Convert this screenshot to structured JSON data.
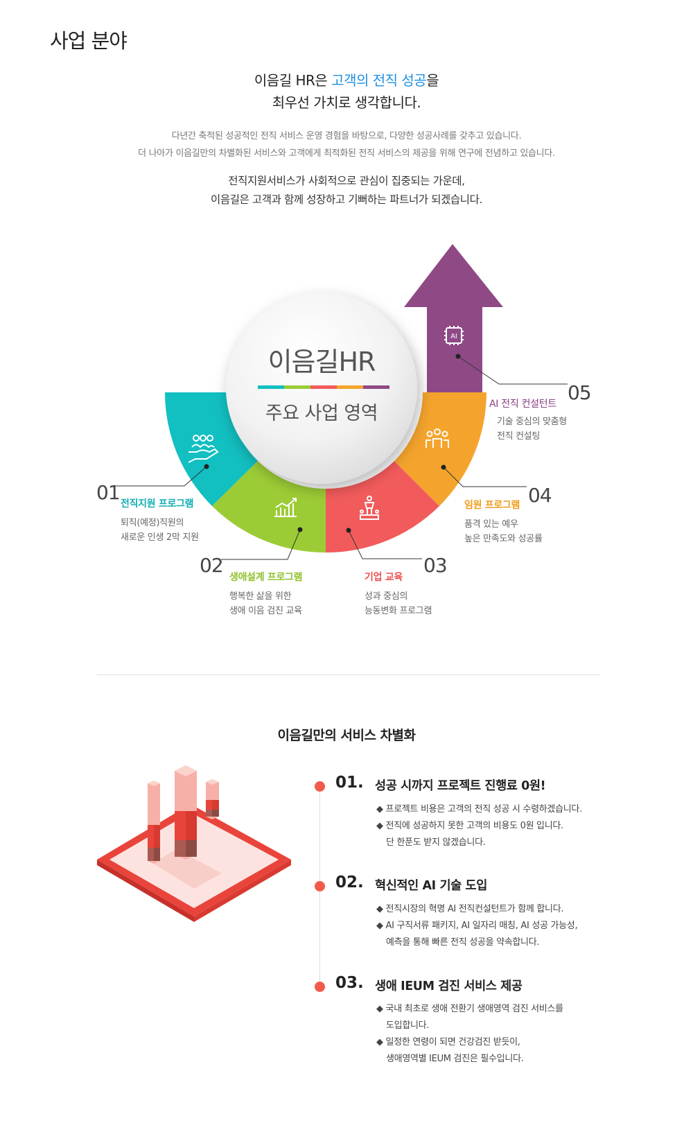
{
  "page_title": "사업 분야",
  "intro": {
    "headline_part1": "이음길 HR은 ",
    "headline_highlight": "고객의 전직 성공",
    "headline_part2": "을",
    "headline_line2": "최우선 가치로 생각합니다.",
    "desc_line1": "다년간 축적된 성공적인 전직 서비스 운영 경험을 바탕으로, 다양한 성공사례를 갖추고 있습니다.",
    "desc_line2": "더 나아가 이음길만의 차별화된 서비스와 고객에게 최적화된 전직 서비스의 제공을 위해 연구에 전념하고 있습니다.",
    "desc2_line1": "전직지원서비스가 사회적으로 관심이 집중되는 가운데,",
    "desc2_line2": "이음길은 고객과 함께 성장하고 기뻐하는 파트너가 되겠습니다."
  },
  "diagram": {
    "center_title": "이음길HR",
    "center_subtitle": "주요 사업 영역",
    "ai_chip_label": "AI",
    "colors": {
      "teal": "#12bfc1",
      "green": "#9ccc35",
      "red": "#f25b5b",
      "orange": "#f4a42c",
      "purple": "#8f4a86"
    },
    "programs": [
      {
        "num": "01",
        "title": "전직지원 프로그램",
        "desc1": "퇴직(예정)직원의",
        "desc2": "새로운 인생 2막 지원",
        "color": "#12aeb3",
        "icon": "hand-people-icon"
      },
      {
        "num": "02",
        "title": "생애설계 프로그램",
        "desc1": "행복한 삶을 위한",
        "desc2": "생애 이음 검진 교육",
        "color": "#8fc12c",
        "icon": "growth-chart-icon"
      },
      {
        "num": "03",
        "title": "기업 교육",
        "desc1": "성과 중심의",
        "desc2": "능동변화 프로그램",
        "color": "#ef4f4f",
        "icon": "podium-icon"
      },
      {
        "num": "04",
        "title": "임원 프로그램",
        "desc1": "품격 있는 예우",
        "desc2": "높은 만족도와 성공률",
        "color": "#f09b1c",
        "icon": "executives-icon"
      },
      {
        "num": "05",
        "title": "AI 전직 컨설턴트",
        "desc1": "기술 중심의 맞춤형",
        "desc2": "전직 컨설팅",
        "color": "#8a3f82",
        "icon": "ai-chip-icon"
      }
    ]
  },
  "section2": {
    "title": "이음길만의 서비스 차별화",
    "items": [
      {
        "num": "01.",
        "title": "성공 시까지 프로젝트 진행료 0원!",
        "bullets": [
          {
            "text": "◆ 프로젝트 비용은 고객의 전직 성공 시 수령하겠습니다."
          },
          {
            "text": "◆ 전직에 성공하지 못한 고객의 비용도 0원 입니다.",
            "cont": "단 한푼도 받지 않겠습니다."
          }
        ]
      },
      {
        "num": "02.",
        "title": "혁신적인 AI 기술 도입",
        "bullets": [
          {
            "text": "◆ 전직시장의 혁명 AI 전직컨설턴트가 함께 합니다."
          },
          {
            "text": "◆ AI 구직서류 패키지, AI 일자리 매칭, AI 성공 가능성,",
            "cont": "예측을 통해 빠른 전직 성공을 약속합니다."
          }
        ]
      },
      {
        "num": "03.",
        "title": "생애 IEUM 검진 서비스 제공",
        "bullets": [
          {
            "text": "◆ 국내 최초로 생애 전환기 생애영역 검진 서비스를",
            "cont": "도입합니다."
          },
          {
            "text": "◆ 일정한 연령이 되면 건강검진 받듯이,",
            "cont": "생애영역별 IEUM 검진은 필수입니다."
          }
        ]
      }
    ]
  }
}
